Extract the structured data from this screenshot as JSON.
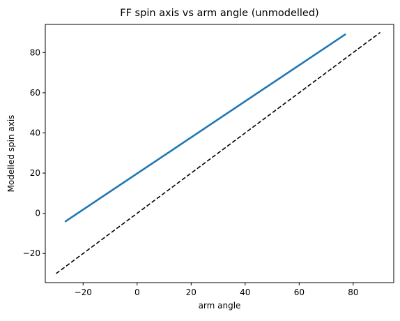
{
  "chart_data": {
    "type": "line",
    "title": "FF spin axis vs arm angle (unmodelled)",
    "xlabel": "arm angle",
    "ylabel": "Modelled spin axis",
    "xlim": [
      -34,
      95
    ],
    "ylim": [
      -34.5,
      94
    ],
    "x_ticks": [
      -20,
      0,
      20,
      40,
      60,
      80
    ],
    "y_ticks": [
      -20,
      0,
      20,
      40,
      60,
      80
    ],
    "x_tick_labels": [
      "−20",
      "0",
      "20",
      "40",
      "60",
      "80"
    ],
    "y_tick_labels": [
      "−20",
      "0",
      "20",
      "40",
      "60",
      "80"
    ],
    "grid": false,
    "legend": "none",
    "series": [
      {
        "style": "solid",
        "color": "#1f77b4",
        "x": [
          -26.5,
          77
        ],
        "y": [
          -4,
          89
        ]
      },
      {
        "style": "dashed",
        "color": "#000000",
        "x": [
          -30,
          90
        ],
        "y": [
          -30,
          90
        ]
      }
    ]
  }
}
